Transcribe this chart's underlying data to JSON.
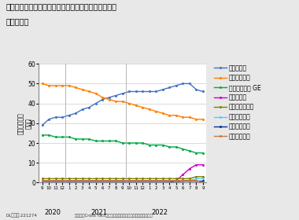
{
  "title1": "代表的なアトピー性皮膚炎治療薬の患者数シェア推移",
  "title2": "（皮膚科）",
  "ylabel_chars": [
    "患",
    "者",
    "数",
    "シ",
    "ェ",
    "ア",
    "",
    "（",
    "％",
    "）"
  ],
  "ylim": [
    0,
    60
  ],
  "yticks": [
    0,
    10,
    20,
    30,
    40,
    50,
    60
  ],
  "footer_left": "DLコード:221274",
  "footer_right": "出典：「Cross Fact」（株式会社インテージリアルワールド）",
  "x_labels": [
    "9",
    "10",
    "11",
    "12",
    "1",
    "2",
    "3",
    "4",
    "5",
    "6",
    "7",
    "8",
    "9",
    "10",
    "11",
    "12",
    "1",
    "2",
    "3",
    "4",
    "5",
    "6",
    "7",
    "8",
    "9"
  ],
  "year_positions": [
    [
      1.5,
      "2020"
    ],
    [
      8.5,
      "2021"
    ],
    [
      17.5,
      "2022"
    ]
  ],
  "year_dividers": [
    3.5,
    12.5
  ],
  "series": [
    {
      "name": "コレクチム",
      "color": "#4472C4",
      "values": [
        29,
        32,
        33,
        33,
        34,
        35,
        37,
        38,
        40,
        42,
        43,
        44,
        45,
        46,
        46,
        46,
        46,
        46,
        47,
        48,
        49,
        50,
        50,
        47,
        46
      ]
    },
    {
      "name": "プロトピック",
      "color": "#FF7F00",
      "values": [
        50,
        49,
        49,
        49,
        49,
        48,
        47,
        46,
        45,
        43,
        42,
        41,
        41,
        40,
        39,
        38,
        37,
        36,
        35,
        34,
        34,
        33,
        33,
        32,
        32
      ]
    },
    {
      "name": "タクロリムス GE",
      "color": "#00AA44",
      "values": [
        24,
        24,
        23,
        23,
        23,
        22,
        22,
        22,
        21,
        21,
        21,
        21,
        20,
        20,
        20,
        20,
        19,
        19,
        19,
        18,
        18,
        17,
        16,
        15,
        15
      ]
    },
    {
      "name": "モイゼルト",
      "color": "#CC00CC",
      "values": [
        0,
        0,
        0,
        0,
        0,
        0,
        0,
        0,
        0,
        0,
        0,
        0,
        0,
        0,
        0,
        0,
        0,
        0,
        0,
        0,
        1,
        4,
        7,
        9,
        9
      ]
    },
    {
      "name": "デュピクセント",
      "color": "#808000",
      "values": [
        2,
        2,
        2,
        2,
        2,
        2,
        2,
        2,
        2,
        2,
        2,
        2,
        2,
        2,
        2,
        2,
        2,
        2,
        2,
        2,
        2,
        2,
        2,
        3,
        3
      ]
    },
    {
      "name": "オルミエント",
      "color": "#55CCEE",
      "values": [
        0,
        0,
        0,
        0,
        0,
        0,
        0,
        0,
        0,
        0,
        0,
        0,
        0,
        0,
        0,
        0,
        0,
        0,
        0,
        0,
        0,
        1,
        1,
        2,
        2
      ]
    },
    {
      "name": "リンヴォック",
      "color": "#003399",
      "values": [
        1,
        1,
        1,
        1,
        1,
        1,
        1,
        1,
        1,
        1,
        1,
        1,
        1,
        1,
        1,
        1,
        1,
        1,
        1,
        1,
        1,
        1,
        1,
        1,
        1
      ]
    },
    {
      "name": "サイバインコ",
      "color": "#C87941",
      "values": [
        1,
        1,
        1,
        1,
        1,
        1,
        1,
        1,
        1,
        1,
        1,
        1,
        1,
        1,
        1,
        1,
        1,
        1,
        1,
        1,
        1,
        1,
        1,
        1,
        0
      ]
    }
  ]
}
